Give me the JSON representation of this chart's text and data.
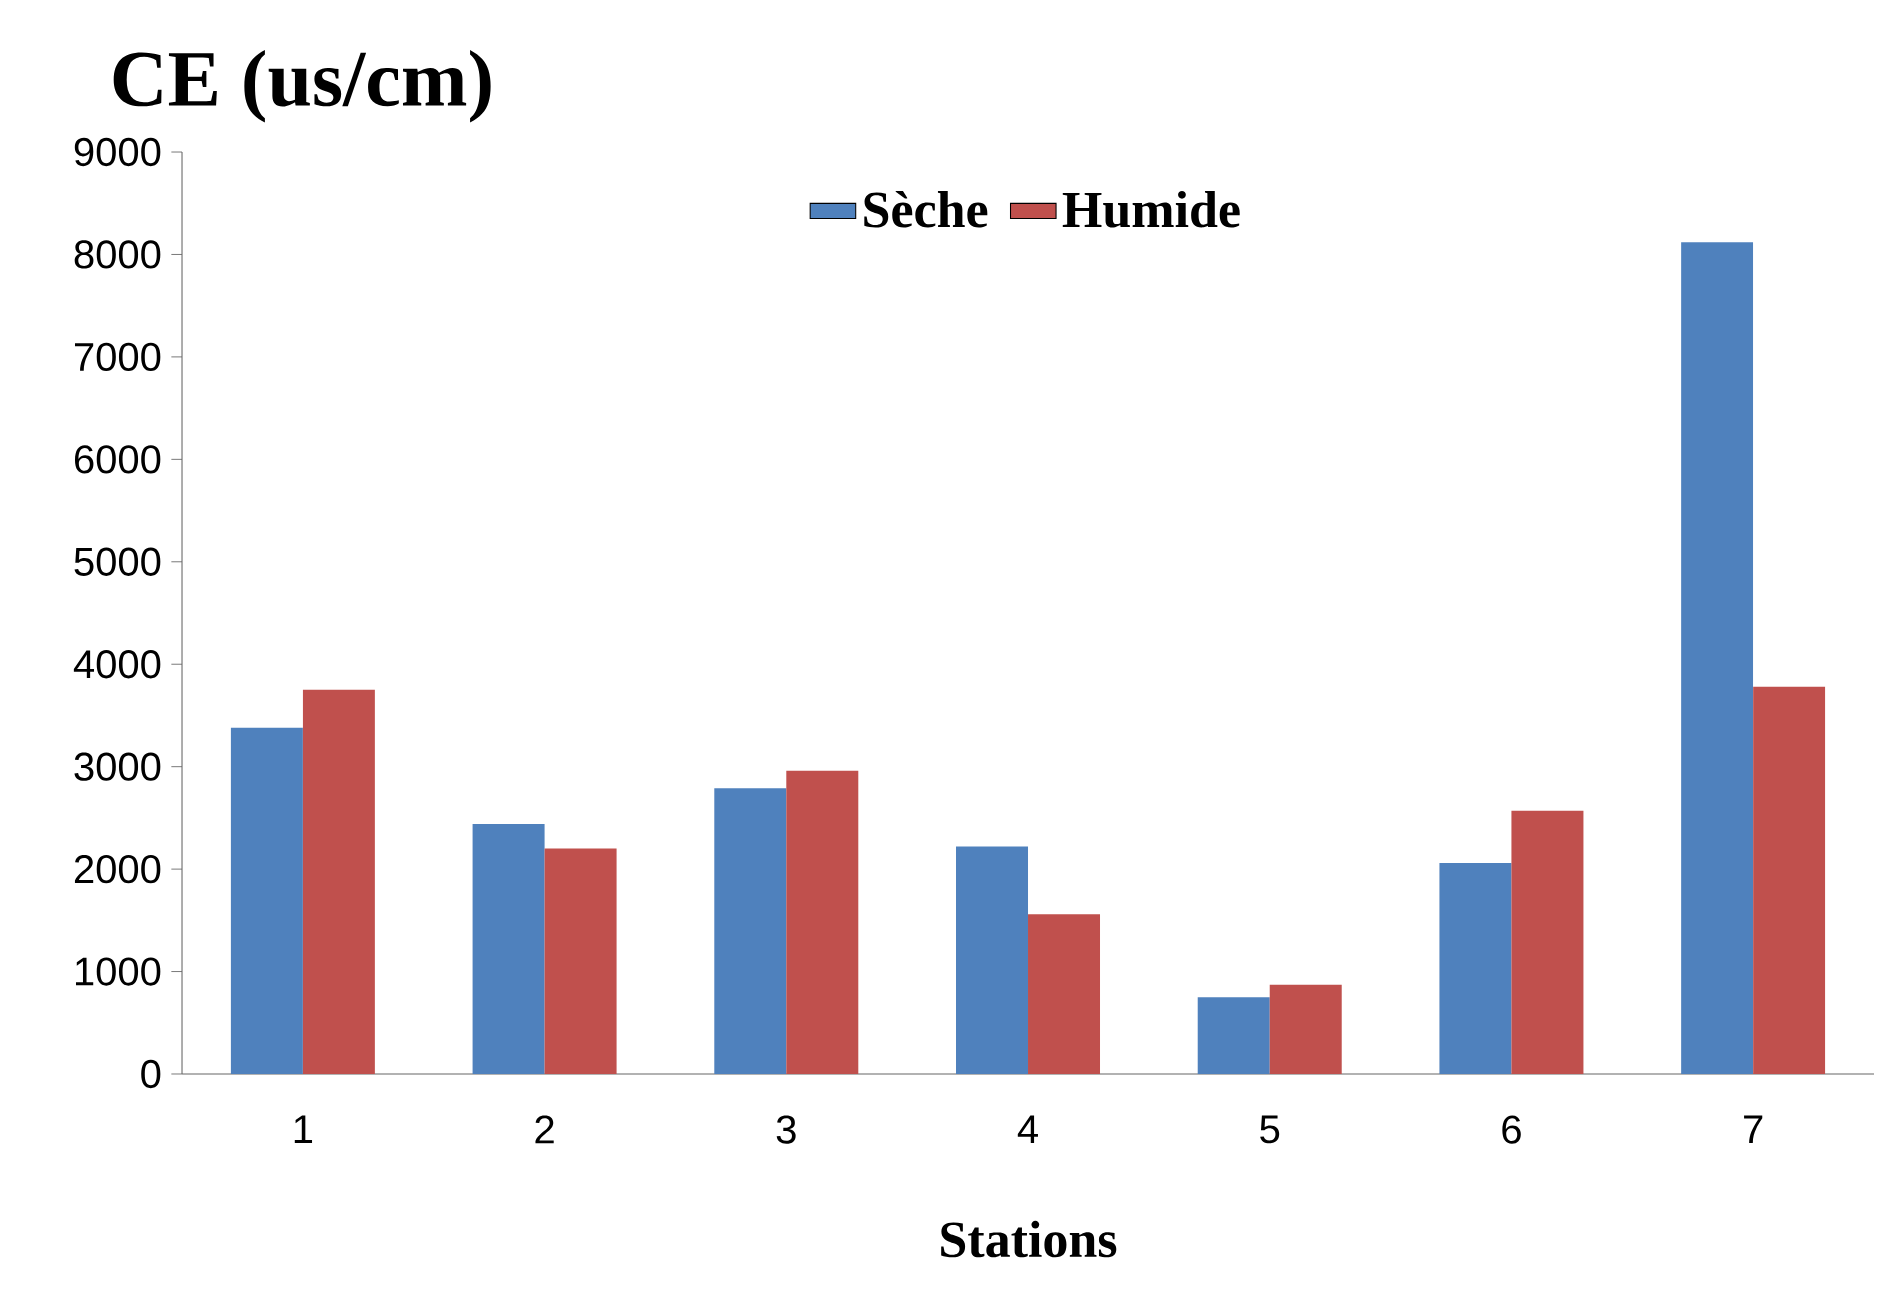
{
  "chart_data": {
    "type": "bar",
    "ylabel": "CE (us/cm)",
    "xlabel": "Stations",
    "categories": [
      "1",
      "2",
      "3",
      "4",
      "5",
      "6",
      "7"
    ],
    "series": [
      {
        "name": "Sèche",
        "color": "#4f81bd",
        "values": [
          3380,
          2440,
          2790,
          2220,
          750,
          2060,
          8120
        ]
      },
      {
        "name": "Humide",
        "color": "#c0504d",
        "values": [
          3750,
          2200,
          2960,
          1560,
          870,
          2570,
          3780
        ]
      }
    ],
    "ylim": [
      0,
      9000
    ],
    "yticks": [
      0,
      1000,
      2000,
      3000,
      4000,
      5000,
      6000,
      7000,
      8000,
      9000
    ],
    "grid": false,
    "legend": "top"
  }
}
